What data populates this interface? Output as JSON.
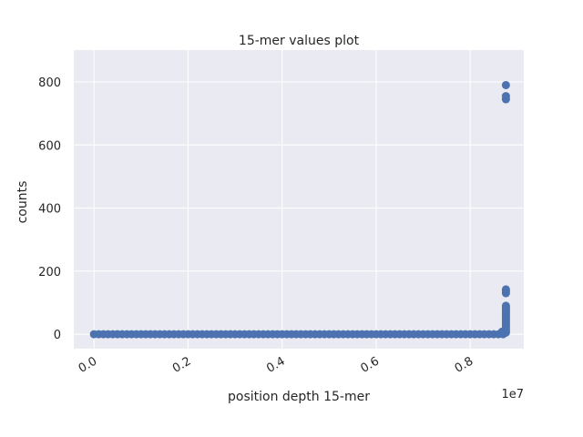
{
  "chart_data": {
    "type": "scatter",
    "title": "15-mer values plot",
    "x_label": "position depth 15-mer",
    "y_label": "counts",
    "x_offset_label": "1e7",
    "xlim": [
      -0.043,
      0.914
    ],
    "ylim": [
      -46,
      901
    ],
    "xticks": [
      {
        "value": 0,
        "label": "0.0"
      },
      0.2,
      0.4,
      0.6,
      0.8
    ],
    "yticks": [
      0,
      200,
      400,
      600,
      800
    ],
    "grid": true,
    "background": "#eaeaf2",
    "series": [
      {
        "color": "#4c72b0",
        "x": [
          0,
          0.01,
          0.02,
          0.03,
          0.04,
          0.05,
          0.06,
          0.07,
          0.08,
          0.09,
          0.1,
          0.11,
          0.12,
          0.13,
          0.14,
          0.15,
          0.16,
          0.17,
          0.18,
          0.19,
          0.2,
          0.21,
          0.22,
          0.23,
          0.24,
          0.25,
          0.26,
          0.27,
          0.28,
          0.29,
          0.3,
          0.31,
          0.32,
          0.33,
          0.34,
          0.35,
          0.36,
          0.37,
          0.38,
          0.39,
          0.4,
          0.41,
          0.42,
          0.43,
          0.44,
          0.45,
          0.46,
          0.47,
          0.48,
          0.49,
          0.5,
          0.51,
          0.52,
          0.53,
          0.54,
          0.55,
          0.56,
          0.57,
          0.58,
          0.59,
          0.6,
          0.61,
          0.62,
          0.63,
          0.64,
          0.65,
          0.66,
          0.67,
          0.68,
          0.69,
          0.7,
          0.71,
          0.72,
          0.73,
          0.74,
          0.75,
          0.76,
          0.77,
          0.78,
          0.79,
          0.8,
          0.81,
          0.82,
          0.83,
          0.84,
          0.85,
          0.86,
          0.87,
          0.868,
          0.868,
          0.876,
          0.876,
          0.876,
          0.876,
          0.876,
          0.876,
          0.876,
          0.876,
          0.876,
          0.876,
          0.876,
          0.876,
          0.876,
          0.876,
          0.876,
          0.876,
          0.876,
          0.876,
          0.876,
          0.876,
          0.876,
          0.876,
          0.876,
          0.876
        ],
        "values": [
          0,
          0,
          0,
          0,
          0,
          0,
          0,
          0,
          0,
          0,
          0,
          0,
          0,
          0,
          0,
          0,
          0,
          0,
          0,
          0,
          0,
          0,
          0,
          0,
          0,
          0,
          0,
          0,
          0,
          0,
          0,
          0,
          0,
          0,
          0,
          0,
          0,
          0,
          0,
          0,
          0,
          0,
          0,
          0,
          0,
          0,
          0,
          0,
          0,
          0,
          0,
          0,
          0,
          0,
          0,
          0,
          0,
          0,
          0,
          0,
          0,
          0,
          0,
          0,
          0,
          0,
          0,
          0,
          0,
          0,
          0,
          0,
          0,
          0,
          0,
          0,
          0,
          0,
          0,
          0,
          0,
          0,
          0,
          0,
          0,
          0,
          0,
          0,
          4,
          8,
          5,
          10,
          15,
          20,
          25,
          30,
          35,
          40,
          45,
          50,
          55,
          60,
          65,
          70,
          75,
          80,
          85,
          90,
          130,
          137,
          142,
          745,
          755,
          790
        ]
      }
    ]
  }
}
